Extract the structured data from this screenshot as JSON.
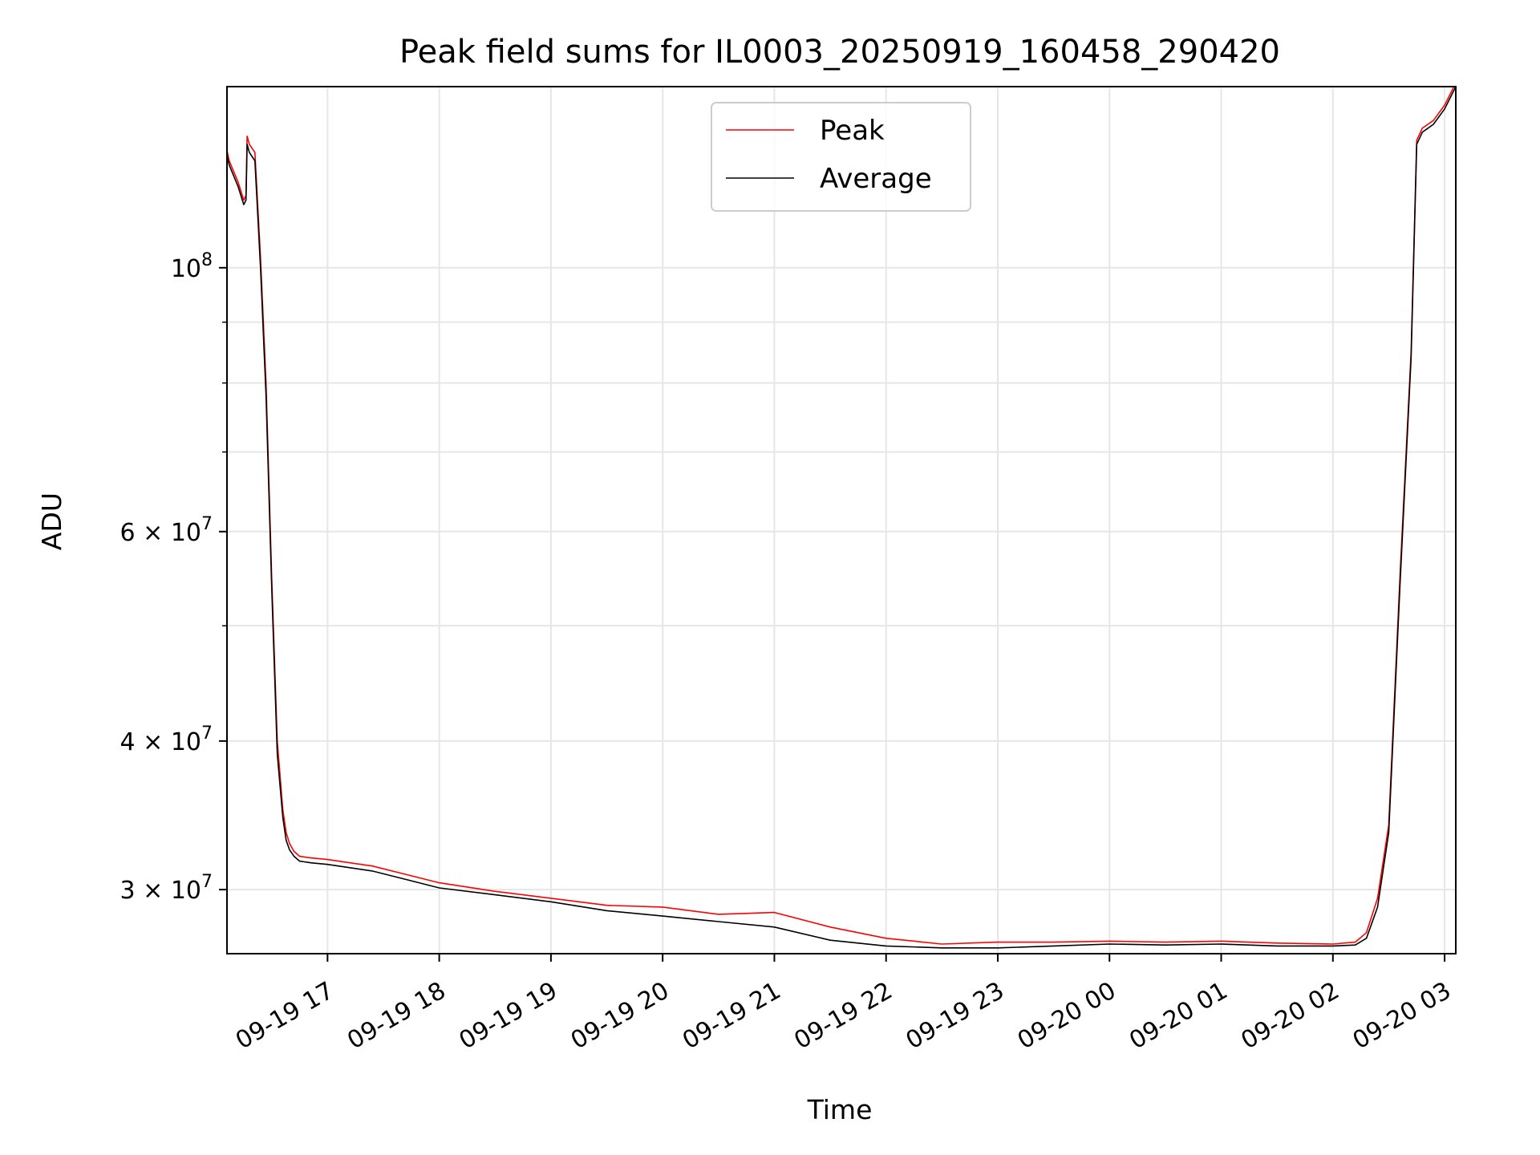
{
  "chart_data": {
    "type": "line",
    "title": "Peak field sums for IL0003_20250919_160458_290420",
    "xlabel": "Time",
    "ylabel": "ADU",
    "yscale": "log",
    "ylim": [
      26500000,
      142000000
    ],
    "xlim_hours": [
      16.1,
      27.1
    ],
    "grid": true,
    "legend_position": "top-center",
    "x_ticks": [
      {
        "hour": 17,
        "label": "09-19 17"
      },
      {
        "hour": 18,
        "label": "09-19 18"
      },
      {
        "hour": 19,
        "label": "09-19 19"
      },
      {
        "hour": 20,
        "label": "09-19 20"
      },
      {
        "hour": 21,
        "label": "09-19 21"
      },
      {
        "hour": 22,
        "label": "09-19 22"
      },
      {
        "hour": 23,
        "label": "09-19 23"
      },
      {
        "hour": 24,
        "label": "09-20 00"
      },
      {
        "hour": 25,
        "label": "09-20 01"
      },
      {
        "hour": 26,
        "label": "09-20 02"
      },
      {
        "hour": 27,
        "label": "09-20 03"
      }
    ],
    "y_ticks": [
      {
        "value": 100000000,
        "base": "10",
        "exp": "8",
        "mant": ""
      },
      {
        "value": 60000000,
        "base": "10",
        "exp": "7",
        "mant": "6 × "
      },
      {
        "value": 40000000,
        "base": "10",
        "exp": "7",
        "mant": "4 × "
      },
      {
        "value": 30000000,
        "base": "10",
        "exp": "7",
        "mant": "3 × "
      }
    ],
    "y_minor_ticks": [
      50000000,
      70000000,
      80000000,
      90000000
    ],
    "series": [
      {
        "name": "Peak",
        "color": "#ff0000",
        "x": [
          16.08,
          16.12,
          16.2,
          16.25,
          16.27,
          16.28,
          16.3,
          16.35,
          16.4,
          16.45,
          16.5,
          16.55,
          16.6,
          16.63,
          16.66,
          16.7,
          16.75,
          16.85,
          17.0,
          17.2,
          17.4,
          17.7,
          18.0,
          18.5,
          19.0,
          19.5,
          20.0,
          20.5,
          21.0,
          21.5,
          22.0,
          22.5,
          23.0,
          23.5,
          24.0,
          24.5,
          25.0,
          25.5,
          26.0,
          26.2,
          26.3,
          26.4,
          26.5,
          26.6,
          26.7,
          26.75,
          26.8,
          26.9,
          27.0,
          27.1
        ],
        "y": [
          128000000,
          123000000,
          118000000,
          114000000,
          115000000,
          129000000,
          127000000,
          125000000,
          102000000,
          80000000,
          55000000,
          40000000,
          35000000,
          33500000,
          32800000,
          32300000,
          32000000,
          31900000,
          31800000,
          31600000,
          31400000,
          30900000,
          30400000,
          29900000,
          29500000,
          29100000,
          29000000,
          28600000,
          28700000,
          27900000,
          27300000,
          27000000,
          27100000,
          27100000,
          27150000,
          27100000,
          27150000,
          27050000,
          27000000,
          27100000,
          27600000,
          29500000,
          34000000,
          55000000,
          85000000,
          128000000,
          131000000,
          133000000,
          137000000,
          143000000
        ]
      },
      {
        "name": "Average",
        "color": "#000000",
        "x": [
          16.08,
          16.12,
          16.2,
          16.25,
          16.27,
          16.28,
          16.3,
          16.35,
          16.4,
          16.45,
          16.5,
          16.55,
          16.6,
          16.63,
          16.66,
          16.7,
          16.75,
          16.85,
          17.0,
          17.2,
          17.4,
          17.7,
          18.0,
          18.5,
          19.0,
          19.5,
          20.0,
          20.5,
          21.0,
          21.5,
          22.0,
          22.5,
          23.0,
          23.5,
          24.0,
          24.5,
          25.0,
          25.5,
          26.0,
          26.2,
          26.3,
          26.4,
          26.5,
          26.6,
          26.7,
          26.75,
          26.8,
          26.9,
          27.0,
          27.1
        ],
        "y": [
          127000000,
          122000000,
          117000000,
          113000000,
          114000000,
          127000000,
          125000000,
          123000000,
          100000000,
          78000000,
          54000000,
          39000000,
          34500000,
          33000000,
          32400000,
          32000000,
          31700000,
          31600000,
          31500000,
          31300000,
          31100000,
          30600000,
          30100000,
          29700000,
          29300000,
          28800000,
          28500000,
          28200000,
          27900000,
          27200000,
          26900000,
          26800000,
          26800000,
          26900000,
          27000000,
          26950000,
          27000000,
          26900000,
          26900000,
          26950000,
          27300000,
          29000000,
          33500000,
          54000000,
          84000000,
          127000000,
          130000000,
          132000000,
          136000000,
          142000000
        ]
      }
    ],
    "legend": {
      "entries": [
        {
          "label": "Peak",
          "color": "#ff0000"
        },
        {
          "label": "Average",
          "color": "#000000"
        }
      ]
    }
  }
}
